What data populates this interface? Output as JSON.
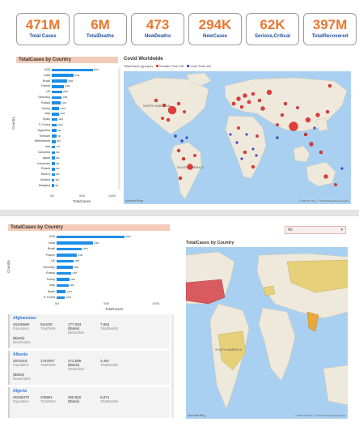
{
  "kpis": [
    {
      "value": "471M",
      "label": "Total Cases"
    },
    {
      "value": "6M",
      "label": "TotalDeaths"
    },
    {
      "value": "473",
      "label": "NewDeaths"
    },
    {
      "value": "294K",
      "label": "NewCases"
    },
    {
      "value": "62K",
      "label": "Serious,Critical"
    },
    {
      "value": "397M",
      "label": "TotalRecovered"
    }
  ],
  "page1": {
    "bar_title": "TotalCases by Country",
    "map_title": "Covid Worldwide",
    "legend_title": "TotalCases (groups)",
    "legend_greater": "Greater Than 1M",
    "legend_less": "Less Than 1M",
    "legend_colors": {
      "greater": "#e01e1e",
      "less": "#2b2bd6"
    },
    "map_labels": {
      "north_america": "NORTH AMERICA",
      "south_america": "SOUTH AMERICA"
    },
    "ylabel": "Country",
    "xlabel": "TotalCases",
    "ticks": [
      "0M",
      "50M",
      "100M"
    ],
    "attribution": "© 2022 TomTom, © 2022 Microsoft Corporation",
    "bing": "Microsoft Bing"
  },
  "page2": {
    "bar_title": "TotalCases by Country",
    "map_title": "TotalCases by Country",
    "dropdown_value": "All",
    "ylabel": "Country",
    "xlabel": "TotalCases",
    "ticks": [
      "0M",
      "50M",
      "100M"
    ],
    "map_label": "SOUTH AMERICA",
    "attribution": "© 2022 TomTom, © 2022 Microsoft Corporation",
    "bing": "Microsoft Bing",
    "info_cards": [
      {
        "country": "Afghanistan",
        "population": "40428569",
        "total_tests": "911530",
        "total_cases": "177,093",
        "new_cases": "(Blank)",
        "total_deaths": "7,654",
        "new_deaths": "(Blank)"
      },
      {
        "country": "Albania",
        "population": "2872416",
        "total_tests": "1767907",
        "total_cases": "273,088",
        "new_cases": "(Blank)",
        "total_deaths": "3,487",
        "new_deaths": "(Blank)"
      },
      {
        "country": "Algeria",
        "population": "45306370",
        "total_tests": "230861",
        "total_cases": "265,550",
        "new_cases": "(Blank)",
        "total_deaths": "6,871",
        "new_deaths": ""
      }
    ],
    "info_keys": {
      "population": "Population",
      "total_tests": "TotalTests",
      "new_cases": "NewCases",
      "total_deaths": "TotalDeaths",
      "new_deaths": "NewDeaths"
    }
  },
  "chart_data": [
    {
      "type": "bar",
      "title": "TotalCases by Country",
      "xlabel": "TotalCases",
      "ylabel": "Country",
      "xlim": [
        0,
        120
      ],
      "categories": [
        "USA",
        "India",
        "Brazil",
        "France",
        "UK",
        "Germany",
        "Russia",
        "Turkey",
        "Italy",
        "Spain",
        "S. Korea",
        "Argentina",
        "Vietnam",
        "Netherlands",
        "Iran",
        "Colombia",
        "Japan",
        "Indonesia",
        "Poland",
        "Mexico",
        "Ukraine",
        "Malaysia"
      ],
      "values": [
        81,
        43,
        30,
        24,
        20,
        19,
        17,
        15,
        14,
        11,
        10,
        9,
        9,
        8,
        7,
        6,
        6,
        6,
        6,
        6,
        5,
        4
      ],
      "labels": [
        "81M",
        "43M",
        "30M",
        "24M",
        "20M",
        "19M",
        "17M",
        "15M",
        "14M",
        "11M",
        "10M",
        "9M",
        "9M",
        "8M",
        "7M",
        "6M",
        "6M",
        "6M",
        "6M",
        "6M",
        "5M",
        "4M"
      ]
    },
    {
      "type": "bar",
      "title": "TotalCases by Country",
      "xlabel": "TotalCases",
      "ylabel": "Country",
      "xlim": [
        0,
        120
      ],
      "categories": [
        "USA",
        "India",
        "Brazil",
        "France",
        "UK",
        "Germany",
        "Russia",
        "Turkey",
        "Italy",
        "Spain",
        "S. Korea"
      ],
      "values": [
        81,
        43,
        30,
        24,
        20,
        19,
        17,
        15,
        14,
        11,
        10
      ],
      "labels": [
        "81M",
        "43M",
        "30M",
        "24M",
        "20M",
        "19M",
        "17M",
        "15M",
        "14M",
        "11M",
        "10M"
      ]
    }
  ]
}
